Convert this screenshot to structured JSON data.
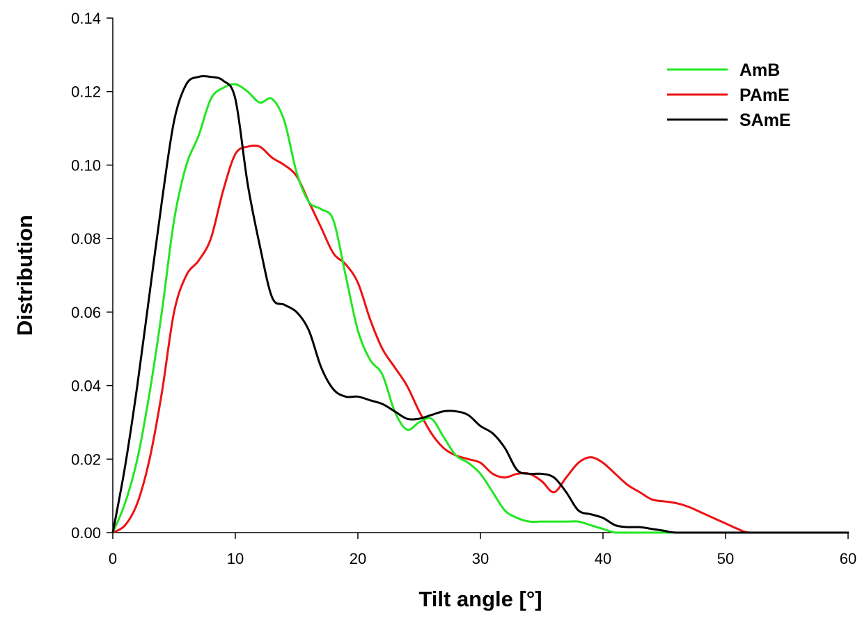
{
  "chart_data": {
    "type": "line",
    "xlabel": "Tilt angle [°]",
    "ylabel": "Distribution",
    "xlim": [
      0,
      60
    ],
    "ylim": [
      0,
      0.14
    ],
    "x_ticks": [
      "0",
      "10",
      "20",
      "30",
      "40",
      "50",
      "60"
    ],
    "y_ticks": [
      "0.00",
      "0.02",
      "0.04",
      "0.06",
      "0.08",
      "0.10",
      "0.12",
      "0.14"
    ],
    "grid": false,
    "legend_position": "top-right",
    "series": [
      {
        "name": "AmB",
        "color": "#22e622",
        "x": [
          0,
          1,
          2,
          3,
          4,
          5,
          6,
          7,
          8,
          9,
          10,
          11,
          12,
          13,
          14,
          15,
          16,
          17,
          18,
          19,
          20,
          21,
          22,
          23,
          24,
          25,
          26,
          27,
          28,
          29,
          30,
          31,
          32,
          33,
          34,
          35,
          36,
          37,
          38,
          39,
          40,
          41,
          42,
          43,
          44,
          45,
          46,
          47,
          48,
          50,
          55,
          60
        ],
        "y": [
          0.0,
          0.008,
          0.02,
          0.038,
          0.06,
          0.085,
          0.1,
          0.108,
          0.118,
          0.121,
          0.122,
          0.12,
          0.117,
          0.118,
          0.112,
          0.098,
          0.09,
          0.088,
          0.085,
          0.07,
          0.055,
          0.047,
          0.043,
          0.033,
          0.028,
          0.03,
          0.031,
          0.026,
          0.021,
          0.019,
          0.016,
          0.011,
          0.006,
          0.004,
          0.003,
          0.003,
          0.003,
          0.003,
          0.003,
          0.002,
          0.001,
          0.0,
          0.0,
          0.0,
          0.0,
          0.0,
          0.0,
          0.0,
          0.0,
          0.0,
          0.0,
          0.0
        ]
      },
      {
        "name": "PAmE",
        "color": "#ee1111",
        "x": [
          0,
          1,
          2,
          3,
          4,
          5,
          6,
          7,
          8,
          9,
          10,
          11,
          12,
          13,
          14,
          15,
          16,
          17,
          18,
          19,
          20,
          21,
          22,
          23,
          24,
          25,
          26,
          27,
          28,
          29,
          30,
          31,
          32,
          33,
          34,
          35,
          36,
          37,
          38,
          39,
          40,
          41,
          42,
          43,
          44,
          45,
          46,
          47,
          48,
          49,
          50,
          51,
          52,
          55,
          60
        ],
        "y": [
          0.0,
          0.002,
          0.008,
          0.02,
          0.038,
          0.06,
          0.07,
          0.074,
          0.08,
          0.093,
          0.103,
          0.105,
          0.105,
          0.102,
          0.1,
          0.097,
          0.09,
          0.083,
          0.076,
          0.073,
          0.068,
          0.058,
          0.05,
          0.045,
          0.04,
          0.033,
          0.027,
          0.023,
          0.021,
          0.02,
          0.019,
          0.016,
          0.015,
          0.016,
          0.016,
          0.014,
          0.011,
          0.015,
          0.019,
          0.0205,
          0.019,
          0.016,
          0.013,
          0.011,
          0.009,
          0.0085,
          0.008,
          0.007,
          0.0055,
          0.004,
          0.0025,
          0.001,
          0.0,
          0.0,
          0.0
        ]
      },
      {
        "name": "SAmE",
        "color": "#000000",
        "x": [
          0,
          1,
          2,
          3,
          4,
          5,
          6,
          7,
          8,
          9,
          10,
          11,
          12,
          13,
          14,
          15,
          16,
          17,
          18,
          19,
          20,
          21,
          22,
          23,
          24,
          25,
          26,
          27,
          28,
          29,
          30,
          31,
          32,
          33,
          34,
          35,
          36,
          37,
          38,
          39,
          40,
          41,
          42,
          43,
          44,
          45,
          46,
          50,
          55,
          60
        ],
        "y": [
          0.0,
          0.018,
          0.04,
          0.065,
          0.09,
          0.112,
          0.122,
          0.124,
          0.124,
          0.123,
          0.118,
          0.095,
          0.078,
          0.064,
          0.062,
          0.06,
          0.055,
          0.045,
          0.039,
          0.037,
          0.037,
          0.036,
          0.035,
          0.033,
          0.031,
          0.031,
          0.032,
          0.033,
          0.033,
          0.032,
          0.029,
          0.027,
          0.023,
          0.017,
          0.016,
          0.016,
          0.015,
          0.011,
          0.006,
          0.005,
          0.004,
          0.002,
          0.0015,
          0.0015,
          0.001,
          0.0005,
          0.0,
          0.0,
          0.0,
          0.0
        ]
      }
    ]
  }
}
